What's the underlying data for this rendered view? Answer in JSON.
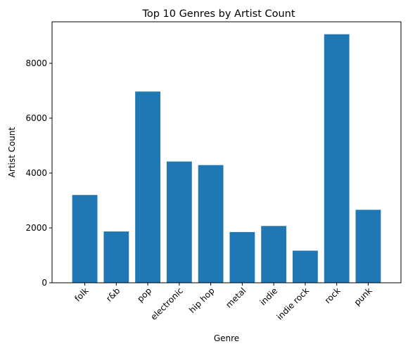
{
  "chart_data": {
    "type": "bar",
    "title": "Top 10 Genres by Artist Count",
    "xlabel": "Genre",
    "ylabel": "Artist Count",
    "categories": [
      "folk",
      "r&b",
      "pop",
      "electronic",
      "hip hop",
      "metal",
      "indie",
      "indie rock",
      "rock",
      "punk"
    ],
    "values": [
      3200,
      1870,
      6970,
      4420,
      4290,
      1850,
      2070,
      1170,
      9060,
      2660
    ],
    "ylim": [
      0,
      9513
    ],
    "yticks": [
      0,
      2000,
      4000,
      6000,
      8000
    ],
    "ytick_labels": [
      "0",
      "2000",
      "4000",
      "6000",
      "8000"
    ],
    "bar_color": "#1f77b4",
    "grid": false,
    "legend": "none"
  }
}
